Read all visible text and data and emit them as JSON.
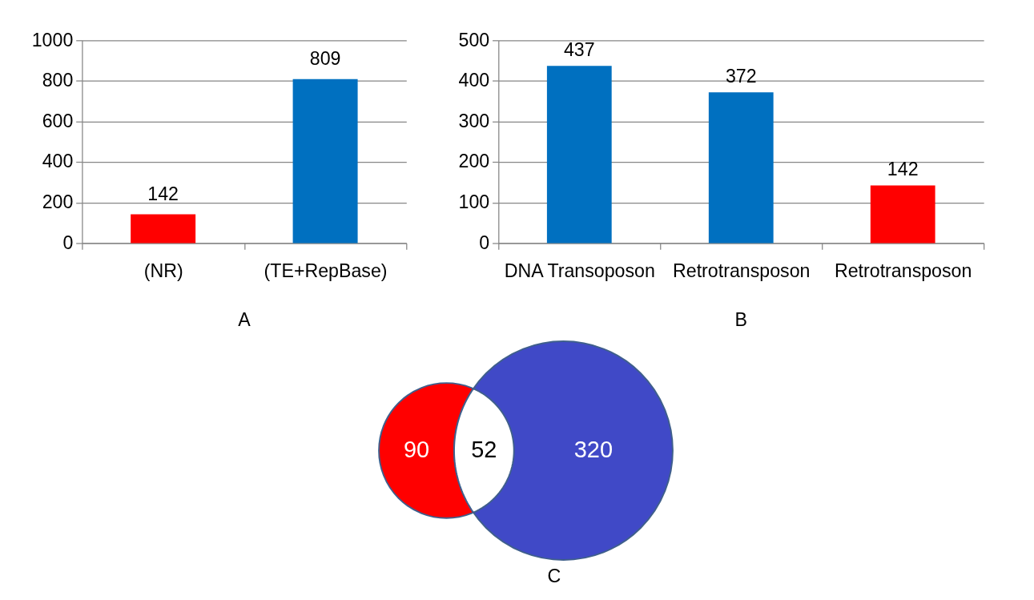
{
  "chart_data": [
    {
      "type": "bar",
      "categories": [
        "(NR)",
        "(TE+RepBase)"
      ],
      "values": [
        142,
        809
      ],
      "colors": [
        "#ff0000",
        "#0070c0"
      ],
      "ylim": [
        0,
        1000
      ],
      "yticks": [
        0,
        200,
        400,
        600,
        800,
        1000
      ],
      "grid": "y",
      "data_labels": true,
      "annotations": [
        "A"
      ]
    },
    {
      "type": "bar",
      "categories": [
        "DNA Transoposon",
        "Retrotransposon",
        "Retrotransposon"
      ],
      "values": [
        437,
        372,
        142
      ],
      "colors": [
        "#0070c0",
        "#0070c0",
        "#ff0000"
      ],
      "ylim": [
        0,
        500
      ],
      "yticks": [
        0,
        100,
        200,
        300,
        400,
        500
      ],
      "grid": "y",
      "data_labels": true,
      "annotations": [
        "B"
      ]
    },
    {
      "type": "other",
      "categories": [
        null,
        null,
        null
      ],
      "values": [
        90,
        52,
        320
      ],
      "colors": [
        "#ff0000",
        "#ffffff",
        "#4049c7"
      ],
      "data_labels": true,
      "annotations": [
        "C"
      ]
    }
  ]
}
